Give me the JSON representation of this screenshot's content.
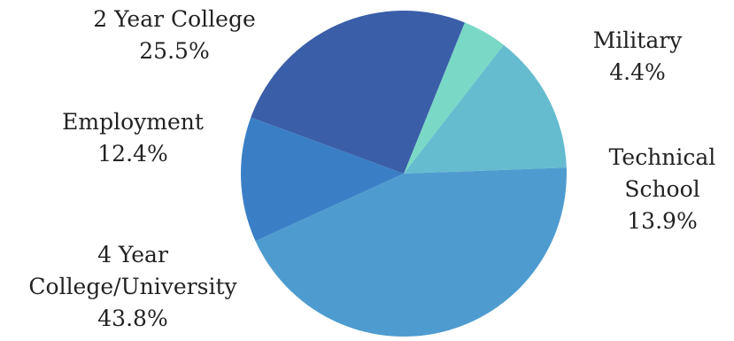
{
  "chart_data": {
    "type": "pie",
    "slices": [
      {
        "label_lines": [
          "Military"
        ],
        "value_label": "4.4%",
        "value": 4.4,
        "color": "#7ad8c6"
      },
      {
        "label_lines": [
          "Technical",
          "School"
        ],
        "value_label": "13.9%",
        "value": 13.9,
        "color": "#66bccf"
      },
      {
        "label_lines": [
          "4 Year",
          "College/University"
        ],
        "value_label": "43.8%",
        "value": 43.8,
        "color": "#4e9ccf"
      },
      {
        "label_lines": [
          "Employment"
        ],
        "value_label": "12.4%",
        "value": 12.4,
        "color": "#3a7fc6"
      },
      {
        "label_lines": [
          "2 Year College"
        ],
        "value_label": "25.5%",
        "value": 25.5,
        "color": "#3a5ea8"
      }
    ]
  }
}
